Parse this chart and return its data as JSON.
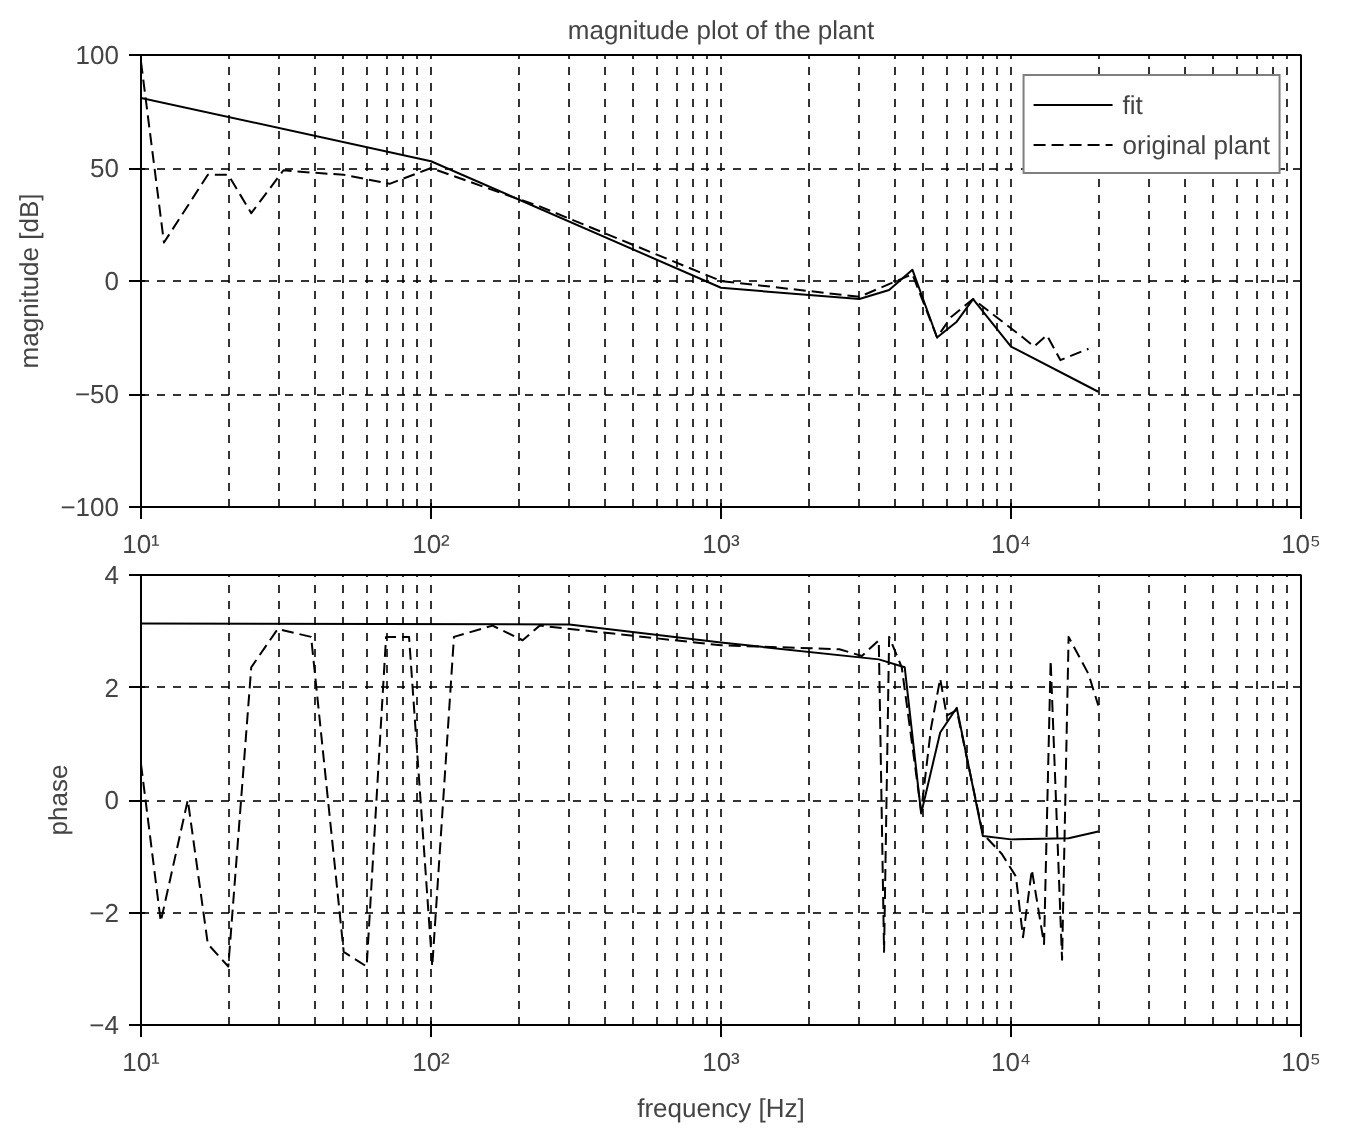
{
  "chart_data": [
    {
      "type": "line",
      "title": "magnitude plot of the plant",
      "ylabel": "magnitude [dB]",
      "log": "x",
      "grid": true,
      "legend": "top right",
      "xlim": [
        10,
        100000
      ],
      "xticks": [
        {
          "value": 10,
          "label": "10¹"
        },
        {
          "value": 100,
          "label": "10²"
        },
        {
          "value": 1000,
          "label": "10³"
        },
        {
          "value": 10000,
          "label": "10⁴"
        },
        {
          "value": 100000,
          "label": "10⁵"
        }
      ],
      "ylim": [
        -100,
        100
      ],
      "yticks": [
        -100,
        -50,
        0,
        50,
        100
      ],
      "series": [
        {
          "name": "fit",
          "color": "#000000",
          "line_style": "solid",
          "x": [
            10,
            100,
            1000,
            3000,
            3800,
            4570,
            5560,
            6500,
            7400,
            10000,
            20000
          ],
          "values": [
            81,
            53,
            -3,
            -8,
            -4,
            5,
            -25,
            -18,
            -8,
            -29,
            -49
          ]
        },
        {
          "name": "original plant",
          "color": "#000000",
          "line_style": "dashed",
          "x": [
            10,
            12,
            17,
            20,
            24,
            31,
            38.5,
            50,
            72,
            100,
            183,
            237,
            1000,
            3000,
            4570,
            5560,
            6200,
            7400,
            11000,
            12000,
            13300,
            14800,
            18500
          ],
          "values": [
            97,
            17,
            47,
            47,
            30,
            49,
            48,
            47,
            43,
            50,
            38,
            33,
            0,
            -7,
            3,
            -25,
            -16,
            -8,
            -25,
            -29,
            -24,
            -35,
            -30
          ]
        }
      ]
    },
    {
      "type": "line",
      "xlabel": "frequency [Hz]",
      "ylabel": "phase",
      "log": "x",
      "grid": true,
      "xlim": [
        10,
        100000
      ],
      "xticks": [
        {
          "value": 10,
          "label": "10¹"
        },
        {
          "value": 100,
          "label": "10²"
        },
        {
          "value": 1000,
          "label": "10³"
        },
        {
          "value": 10000,
          "label": "10⁴"
        },
        {
          "value": 100000,
          "label": "10⁵"
        }
      ],
      "ylim": [
        -4,
        4
      ],
      "yticks": [
        -4,
        -2,
        0,
        2,
        4
      ],
      "series": [
        {
          "color": "#000000",
          "line_style": "solid",
          "x": [
            10,
            300,
            1000,
            3500,
            4300,
            4900,
            5700,
            6500,
            8000,
            10000,
            15800,
            20000
          ],
          "values": [
            3.14,
            3.12,
            2.8,
            2.5,
            2.36,
            -0.24,
            1.2,
            1.64,
            -0.64,
            -0.7,
            -0.68,
            -0.56
          ]
        },
        {
          "color": "#000000",
          "line_style": "dashed",
          "x": [
            10,
            11.7,
            14.5,
            17,
            20,
            24,
            29.6,
            38.6,
            50,
            60,
            70,
            84,
            101,
            120,
            163,
            207,
            237,
            1000,
            2560,
            3060,
            3500,
            3650,
            3800,
            4200,
            4900,
            5300,
            5700,
            6000,
            6500,
            8000,
            9300,
            10400,
            11000,
            11800,
            13000,
            13700,
            15000,
            15800,
            18500,
            20000
          ],
          "values": [
            0.64,
            -2.16,
            0,
            -2.56,
            -2.96,
            2.36,
            3.04,
            2.9,
            -2.7,
            -2.96,
            2.9,
            2.9,
            -2.96,
            2.9,
            3.1,
            2.84,
            3.1,
            2.75,
            2.68,
            2.56,
            2.84,
            -2.7,
            2.9,
            2.36,
            -0.2,
            1.28,
            2.16,
            1.5,
            1.6,
            -0.6,
            -0.96,
            -1.36,
            -2.44,
            -1.24,
            -2.56,
            2.48,
            -2.84,
            2.9,
            2.24,
            1.68
          ]
        }
      ]
    }
  ]
}
